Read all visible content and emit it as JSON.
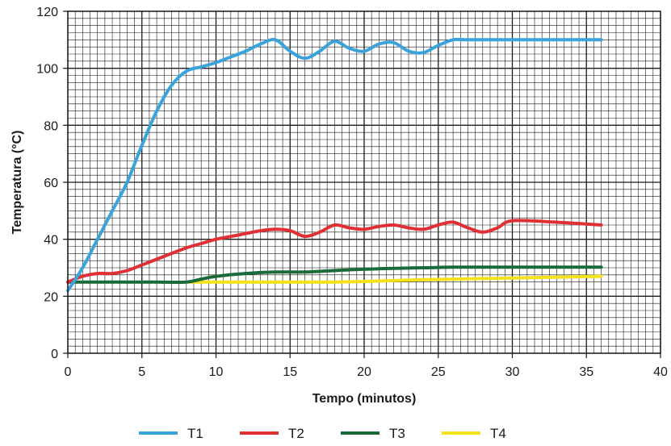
{
  "chart_data": {
    "type": "line",
    "xlabel": "Tempo (minutos)",
    "ylabel": "Temperatura (°C)",
    "xlim": [
      0,
      40
    ],
    "ylim": [
      0,
      120
    ],
    "x_ticks": [
      0,
      5,
      10,
      15,
      20,
      25,
      30,
      35,
      40
    ],
    "y_ticks": [
      0,
      20,
      40,
      60,
      80,
      100,
      120
    ],
    "grid": true,
    "minor_grid": true,
    "legend_position": "bottom",
    "series": [
      {
        "name": "T1",
        "color": "#3aa3dc",
        "points": [
          [
            0,
            22
          ],
          [
            1,
            30
          ],
          [
            2,
            40
          ],
          [
            3,
            50
          ],
          [
            4,
            60
          ],
          [
            5,
            73
          ],
          [
            6,
            85
          ],
          [
            7,
            94
          ],
          [
            8,
            99
          ],
          [
            9,
            100.5
          ],
          [
            10,
            102
          ],
          [
            11,
            104
          ],
          [
            12,
            106
          ],
          [
            13,
            108.5
          ],
          [
            14,
            110
          ],
          [
            15,
            106
          ],
          [
            16,
            103.5
          ],
          [
            17,
            106
          ],
          [
            18,
            109.5
          ],
          [
            19,
            107
          ],
          [
            20,
            106
          ],
          [
            21,
            108.5
          ],
          [
            22,
            109
          ],
          [
            23,
            106
          ],
          [
            24,
            105.5
          ],
          [
            25,
            108
          ],
          [
            26,
            110
          ],
          [
            27,
            110
          ],
          [
            30,
            110
          ],
          [
            33,
            110
          ],
          [
            36,
            110
          ]
        ]
      },
      {
        "name": "T2",
        "color": "#e03035",
        "points": [
          [
            0,
            25
          ],
          [
            1,
            27
          ],
          [
            2,
            28
          ],
          [
            3,
            28
          ],
          [
            4,
            29
          ],
          [
            5,
            31
          ],
          [
            6,
            33
          ],
          [
            7,
            35
          ],
          [
            8,
            37
          ],
          [
            9,
            38.5
          ],
          [
            10,
            40
          ],
          [
            11,
            41
          ],
          [
            12,
            42
          ],
          [
            13,
            43
          ],
          [
            14,
            43.5
          ],
          [
            15,
            43
          ],
          [
            16,
            41
          ],
          [
            17,
            42.5
          ],
          [
            18,
            45
          ],
          [
            19,
            44
          ],
          [
            20,
            43.5
          ],
          [
            21,
            44.5
          ],
          [
            22,
            45
          ],
          [
            23,
            44
          ],
          [
            24,
            43.5
          ],
          [
            25,
            45
          ],
          [
            26,
            46
          ],
          [
            27,
            44
          ],
          [
            28,
            42.5
          ],
          [
            29,
            44
          ],
          [
            30,
            46.5
          ],
          [
            33,
            46
          ],
          [
            36,
            45
          ]
        ]
      },
      {
        "name": "T3",
        "color": "#1b6a3a",
        "points": [
          [
            0,
            25
          ],
          [
            2,
            25
          ],
          [
            4,
            25
          ],
          [
            6,
            25
          ],
          [
            8,
            25
          ],
          [
            9,
            26
          ],
          [
            10,
            27
          ],
          [
            12,
            28
          ],
          [
            14,
            28.5
          ],
          [
            16,
            28.5
          ],
          [
            18,
            29
          ],
          [
            20,
            29.5
          ],
          [
            22,
            29.8
          ],
          [
            24,
            30
          ],
          [
            26,
            30.2
          ],
          [
            28,
            30.2
          ],
          [
            30,
            30.2
          ],
          [
            33,
            30.2
          ],
          [
            36,
            30.2
          ]
        ]
      },
      {
        "name": "T4",
        "color": "#f6e21a",
        "points": [
          [
            8,
            25
          ],
          [
            10,
            25
          ],
          [
            14,
            25
          ],
          [
            18,
            25
          ],
          [
            20,
            25.2
          ],
          [
            22,
            25.5
          ],
          [
            24,
            25.8
          ],
          [
            26,
            26
          ],
          [
            28,
            26.2
          ],
          [
            30,
            26.4
          ],
          [
            32,
            26.6
          ],
          [
            34,
            26.8
          ],
          [
            36,
            27
          ]
        ]
      }
    ]
  }
}
